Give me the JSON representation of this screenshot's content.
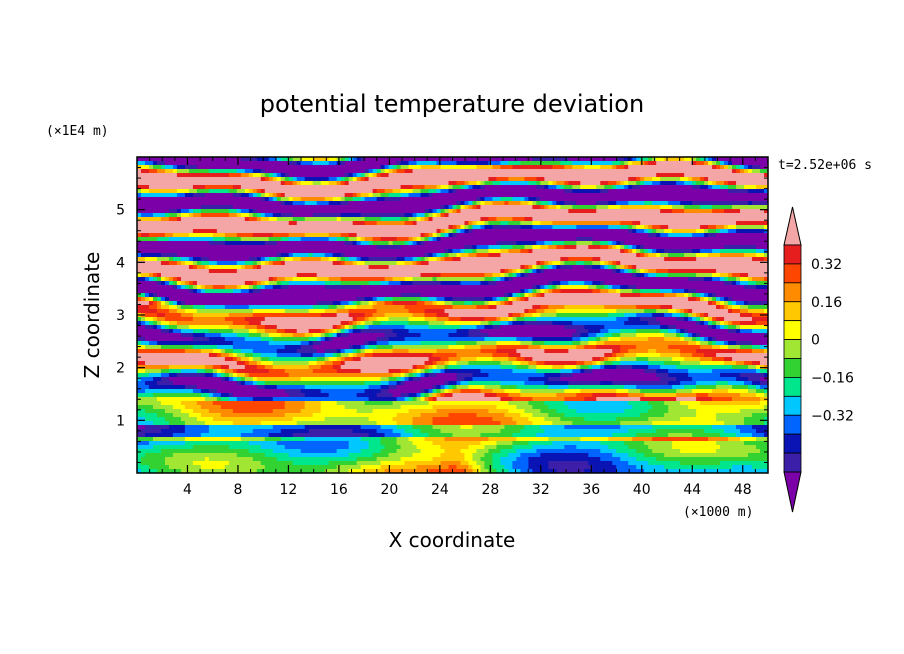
{
  "chart_data": {
    "type": "heatmap",
    "title": "potential temperature deviation",
    "xlabel": "X coordinate",
    "ylabel": "Z coordinate",
    "x_scale_label": "(×1000 m)",
    "y_scale_label": "(×1E4 m)",
    "time_label": "t=2.52e+06 s",
    "xlim": [
      0,
      50
    ],
    "ylim": [
      0,
      6
    ],
    "x_ticks": [
      4,
      8,
      12,
      16,
      20,
      24,
      28,
      32,
      36,
      40,
      44,
      48
    ],
    "x_tick_labels": [
      "4",
      "8",
      "12",
      "16",
      "20",
      "24",
      "28",
      "32",
      "36",
      "40",
      "44",
      "48"
    ],
    "y_ticks": [
      1,
      2,
      3,
      4,
      5
    ],
    "y_tick_labels": [
      "1",
      "2",
      "3",
      "4",
      "5"
    ],
    "colorbar": {
      "levels": [
        "0.32",
        "0.16",
        "0",
        "-0.16",
        "-0.32"
      ],
      "level_labels": [
        "0.32",
        "0.16",
        "0",
        "−0.16",
        "−0.32"
      ],
      "colors": [
        "#7b00a8",
        "#3c1fa8",
        "#0a14b4",
        "#0064ff",
        "#00c8ff",
        "#00e68c",
        "#32d232",
        "#a0e632",
        "#ffff00",
        "#ffc800",
        "#ff8c00",
        "#ff4600",
        "#e61e1e",
        "#f4a6a6"
      ],
      "extend": "both"
    }
  }
}
